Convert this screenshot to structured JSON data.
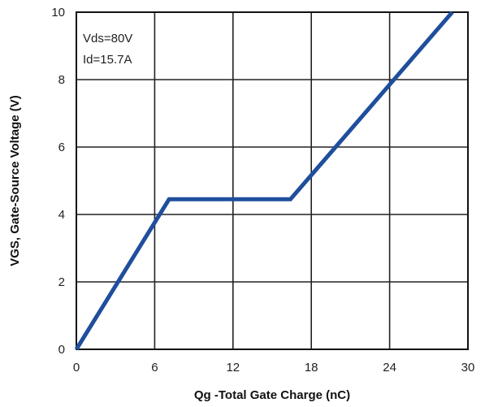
{
  "chart_data": {
    "type": "line",
    "title": "",
    "xlabel": "Qg -Total Gate Charge (nC)",
    "ylabel": "VGS, Gate-Source Voltage (V)",
    "xlim": [
      0,
      30
    ],
    "ylim": [
      0,
      10
    ],
    "x_ticks": [
      "0",
      "6",
      "12",
      "18",
      "24",
      "30"
    ],
    "y_ticks": [
      "0",
      "2",
      "4",
      "6",
      "8",
      "10"
    ],
    "grid": true,
    "annotations": [
      "Vds=80V",
      "Id=15.7A"
    ],
    "series": [
      {
        "color": "#1f4e9c",
        "x": [
          0,
          7.1,
          16.4,
          28.8
        ],
        "y": [
          0,
          4.45,
          4.45,
          10
        ]
      }
    ]
  }
}
